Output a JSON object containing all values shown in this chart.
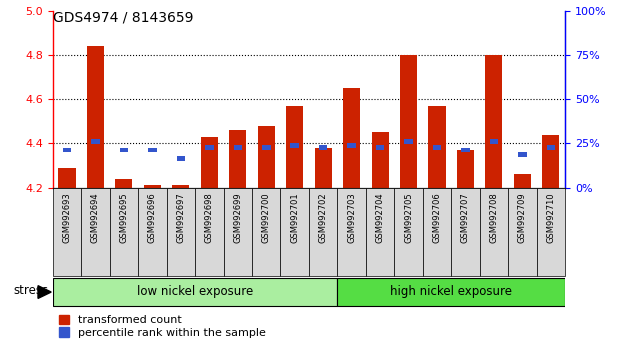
{
  "title": "GDS4974 / 8143659",
  "samples": [
    "GSM992693",
    "GSM992694",
    "GSM992695",
    "GSM992696",
    "GSM992697",
    "GSM992698",
    "GSM992699",
    "GSM992700",
    "GSM992701",
    "GSM992702",
    "GSM992703",
    "GSM992704",
    "GSM992705",
    "GSM992706",
    "GSM992707",
    "GSM992708",
    "GSM992709",
    "GSM992710"
  ],
  "red_values": [
    4.29,
    4.84,
    4.24,
    4.21,
    4.21,
    4.43,
    4.46,
    4.48,
    4.57,
    4.38,
    4.65,
    4.45,
    4.8,
    4.57,
    4.37,
    4.8,
    4.26,
    4.44
  ],
  "blue_values": [
    4.37,
    4.41,
    4.37,
    4.37,
    4.33,
    4.38,
    4.38,
    4.38,
    4.39,
    4.38,
    4.39,
    4.38,
    4.41,
    4.38,
    4.37,
    4.41,
    4.35,
    4.38
  ],
  "y_min": 4.2,
  "y_max": 5.0,
  "y_ticks_red": [
    4.2,
    4.4,
    4.6,
    4.8,
    5.0
  ],
  "y_ticks_blue_pct": [
    0,
    25,
    50,
    75,
    100
  ],
  "low_nickel_count": 10,
  "high_nickel_count": 8,
  "low_nickel_label": "low nickel exposure",
  "high_nickel_label": "high nickel exposure",
  "stress_label": "stress",
  "legend_red": "transformed count",
  "legend_blue": "percentile rank within the sample",
  "bar_color": "#cc2200",
  "blue_color": "#3355cc",
  "low_nickel_color": "#aaeea0",
  "high_nickel_color": "#55dd44",
  "label_bg_color": "#d8d8d8",
  "bar_width": 0.6,
  "fig_bg": "#ffffff"
}
